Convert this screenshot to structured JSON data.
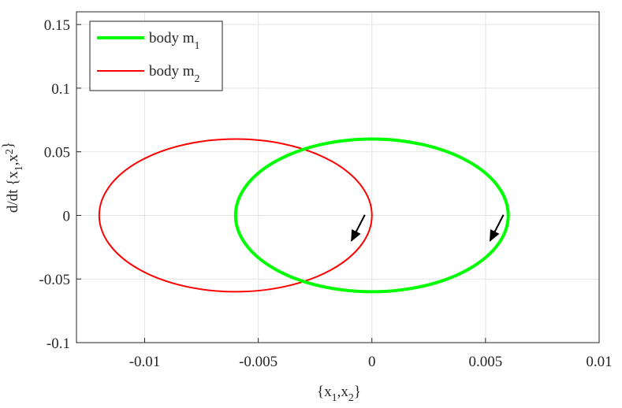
{
  "chart_data": {
    "type": "line",
    "xlabel": {
      "main": "{x",
      "sub1": "1",
      "mid": ",x",
      "sub2": "2",
      "end": "}"
    },
    "ylabel": {
      "main": "d/dt {x",
      "sub1": "1",
      "mid": ",x",
      "sub2": "2",
      "end": "}"
    },
    "xlim": [
      -0.013,
      0.01
    ],
    "ylim": [
      -0.1,
      0.16
    ],
    "xticks": [
      -0.01,
      -0.005,
      0,
      0.005,
      0.01
    ],
    "xtick_labels": [
      "-0.01",
      "-0.005",
      "0",
      "0.005",
      "0.01"
    ],
    "yticks": [
      -0.1,
      -0.05,
      0,
      0.05,
      0.1,
      0.15
    ],
    "ytick_labels": [
      "-0.1",
      "-0.05",
      "0",
      "0.05",
      "0.1",
      "0.15"
    ],
    "grid": true,
    "legend_position": "top-left",
    "series": [
      {
        "name": "body m",
        "name_sub": "1",
        "color": "#00ff00",
        "shape": "ellipse",
        "center": [
          0,
          0
        ],
        "x_semi_axis": 0.006,
        "y_semi_axis": 0.06,
        "direction_arrow_at": [
          0.0052,
          -0.02
        ]
      },
      {
        "name": "body m",
        "name_sub": "2",
        "color": "#ff0000",
        "shape": "ellipse",
        "center": [
          -0.006,
          0
        ],
        "x_semi_axis": 0.006,
        "y_semi_axis": 0.06,
        "direction_arrow_at": [
          -0.0009,
          -0.02
        ]
      }
    ]
  }
}
